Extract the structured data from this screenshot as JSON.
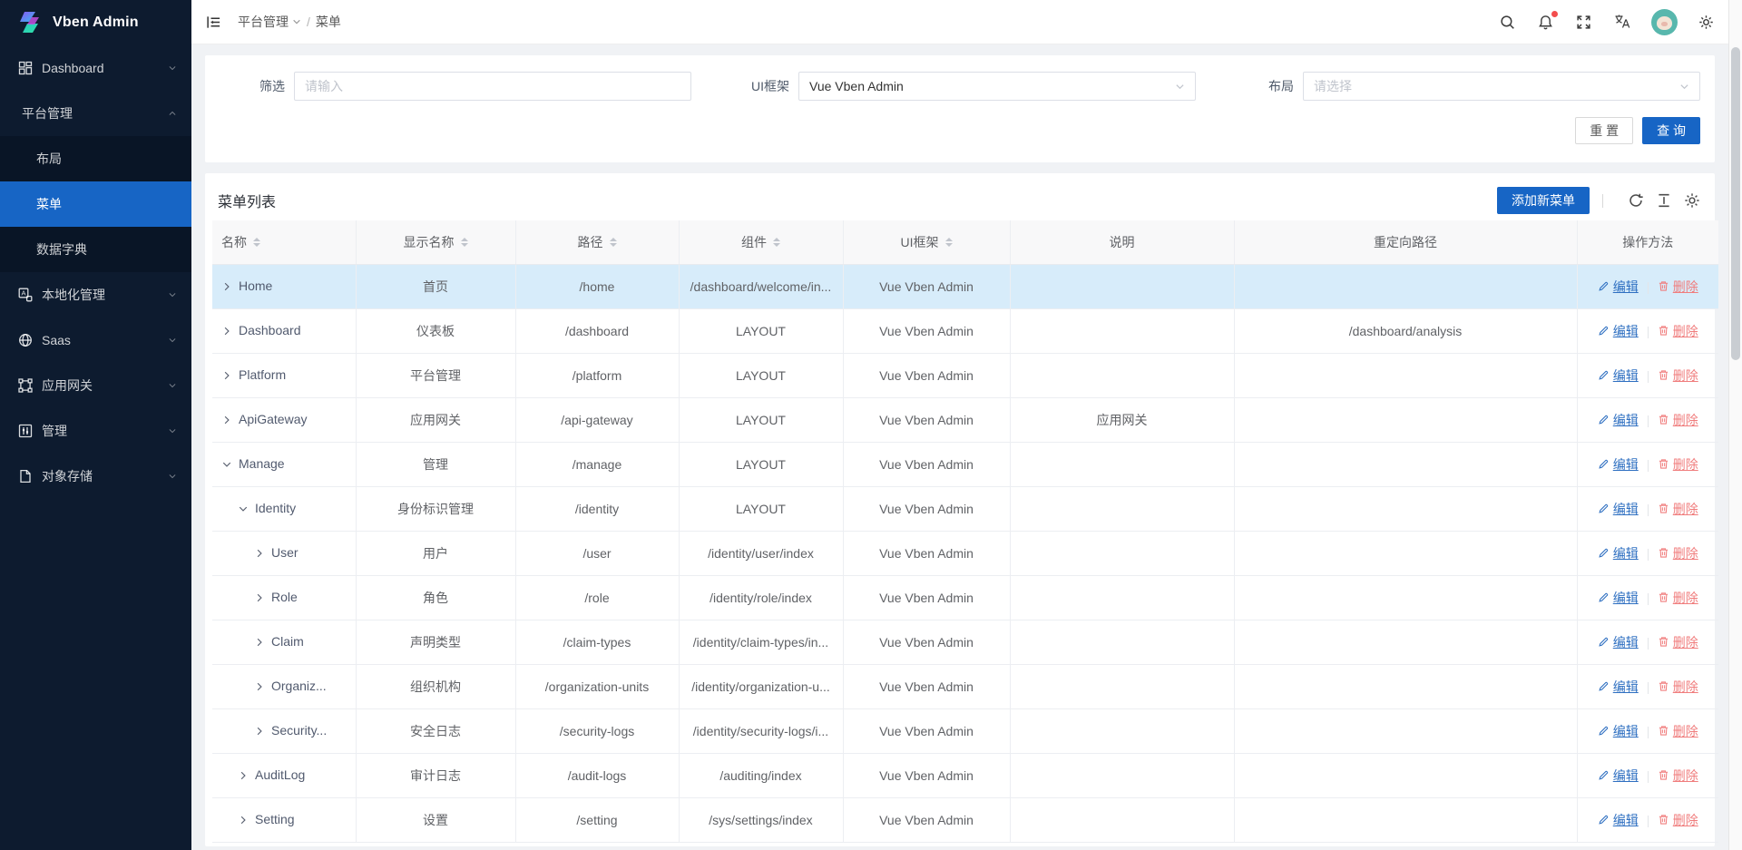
{
  "app": {
    "title": "Vben Admin"
  },
  "colors": {
    "accent": "#1765c5",
    "sidebar_bg": "#0d1b2f",
    "sidebar_submenu_bg": "#091526",
    "selected_row_bg": "#d7ecfa",
    "edit_link": "#2e6fc1",
    "delete_link": "#f07d7d",
    "notification_dot": "#f34d4d"
  },
  "sidebar": {
    "items": [
      {
        "id": "dashboard",
        "label": "Dashboard",
        "icon": "dashboard-icon",
        "chevron": "down",
        "type": "top"
      },
      {
        "id": "platform",
        "label": "平台管理",
        "chevron": "up",
        "type": "top"
      },
      {
        "id": "layout",
        "label": "布局",
        "type": "sub"
      },
      {
        "id": "menu",
        "label": "菜单",
        "type": "sub",
        "selected": true
      },
      {
        "id": "data-dictionary",
        "label": "数据字典",
        "type": "sub"
      },
      {
        "id": "localization",
        "label": "本地化管理",
        "icon": "translate-box-icon",
        "chevron": "down",
        "type": "top"
      },
      {
        "id": "saas",
        "label": "Saas",
        "icon": "globe-icon",
        "chevron": "down",
        "type": "top"
      },
      {
        "id": "api-gateway",
        "label": "应用网关",
        "icon": "gateway-icon",
        "chevron": "down",
        "type": "top"
      },
      {
        "id": "manage",
        "label": "管理",
        "icon": "sliders-icon",
        "chevron": "down",
        "type": "top"
      },
      {
        "id": "object-storage",
        "label": "对象存储",
        "icon": "storage-icon",
        "chevron": "down",
        "type": "top"
      }
    ]
  },
  "header": {
    "breadcrumb": {
      "parent": "平台管理",
      "separator": "/",
      "current": "菜单"
    }
  },
  "filter": {
    "fields": [
      {
        "label": "筛选",
        "type": "input",
        "placeholder": "请输入",
        "value": ""
      },
      {
        "label": "UI框架",
        "type": "select",
        "value": "Vue Vben Admin"
      },
      {
        "label": "布局",
        "type": "select",
        "placeholder": "请选择",
        "value": ""
      }
    ],
    "reset_label": "重 置",
    "query_label": "查 询"
  },
  "table": {
    "title": "菜单列表",
    "add_button_label": "添加新菜单",
    "edit_label": "编辑",
    "delete_label": "删除",
    "columns": [
      {
        "key": "name",
        "label": "名称",
        "sortable": true,
        "align": "left"
      },
      {
        "key": "display-name",
        "label": "显示名称",
        "sortable": true
      },
      {
        "key": "path",
        "label": "路径",
        "sortable": true
      },
      {
        "key": "component",
        "label": "组件",
        "sortable": true
      },
      {
        "key": "ui-framework",
        "label": "UI框架",
        "sortable": true
      },
      {
        "key": "description",
        "label": "说明",
        "sortable": false
      },
      {
        "key": "redirect-path",
        "label": "重定向路径",
        "sortable": false
      },
      {
        "key": "actions",
        "label": "操作方法",
        "sortable": false
      }
    ],
    "rows": [
      {
        "name": "Home",
        "level": 0,
        "expanded": false,
        "display_name": "首页",
        "path": "/home",
        "component": "/dashboard/welcome/in...",
        "ui_framework": "Vue Vben Admin",
        "description": "",
        "redirect": "",
        "highlighted": true
      },
      {
        "name": "Dashboard",
        "level": 0,
        "expanded": false,
        "display_name": "仪表板",
        "path": "/dashboard",
        "component": "LAYOUT",
        "ui_framework": "Vue Vben Admin",
        "description": "",
        "redirect": "/dashboard/analysis",
        "highlighted": false
      },
      {
        "name": "Platform",
        "level": 0,
        "expanded": false,
        "display_name": "平台管理",
        "path": "/platform",
        "component": "LAYOUT",
        "ui_framework": "Vue Vben Admin",
        "description": "",
        "redirect": "",
        "highlighted": false
      },
      {
        "name": "ApiGateway",
        "level": 0,
        "expanded": false,
        "display_name": "应用网关",
        "path": "/api-gateway",
        "component": "LAYOUT",
        "ui_framework": "Vue Vben Admin",
        "description": "应用网关",
        "redirect": "",
        "highlighted": false
      },
      {
        "name": "Manage",
        "level": 0,
        "expanded": true,
        "display_name": "管理",
        "path": "/manage",
        "component": "LAYOUT",
        "ui_framework": "Vue Vben Admin",
        "description": "",
        "redirect": "",
        "highlighted": false
      },
      {
        "name": "Identity",
        "level": 1,
        "expanded": true,
        "display_name": "身份标识管理",
        "path": "/identity",
        "component": "LAYOUT",
        "ui_framework": "Vue Vben Admin",
        "description": "",
        "redirect": "",
        "highlighted": false
      },
      {
        "name": "User",
        "level": 2,
        "expanded": false,
        "display_name": "用户",
        "path": "/user",
        "component": "/identity/user/index",
        "ui_framework": "Vue Vben Admin",
        "description": "",
        "redirect": "",
        "highlighted": false
      },
      {
        "name": "Role",
        "level": 2,
        "expanded": false,
        "display_name": "角色",
        "path": "/role",
        "component": "/identity/role/index",
        "ui_framework": "Vue Vben Admin",
        "description": "",
        "redirect": "",
        "highlighted": false
      },
      {
        "name": "Claim",
        "level": 2,
        "expanded": false,
        "display_name": "声明类型",
        "path": "/claim-types",
        "component": "/identity/claim-types/in...",
        "ui_framework": "Vue Vben Admin",
        "description": "",
        "redirect": "",
        "highlighted": false
      },
      {
        "name": "Organiz...",
        "level": 2,
        "expanded": false,
        "display_name": "组织机构",
        "path": "/organization-units",
        "component": "/identity/organization-u...",
        "ui_framework": "Vue Vben Admin",
        "description": "",
        "redirect": "",
        "highlighted": false
      },
      {
        "name": "Security...",
        "level": 2,
        "expanded": false,
        "display_name": "安全日志",
        "path": "/security-logs",
        "component": "/identity/security-logs/i...",
        "ui_framework": "Vue Vben Admin",
        "description": "",
        "redirect": "",
        "highlighted": false
      },
      {
        "name": "AuditLog",
        "level": 1,
        "expanded": false,
        "display_name": "审计日志",
        "path": "/audit-logs",
        "component": "/auditing/index",
        "ui_framework": "Vue Vben Admin",
        "description": "",
        "redirect": "",
        "highlighted": false
      },
      {
        "name": "Setting",
        "level": 1,
        "expanded": false,
        "display_name": "设置",
        "path": "/setting",
        "component": "/sys/settings/index",
        "ui_framework": "Vue Vben Admin",
        "description": "",
        "redirect": "",
        "highlighted": false
      }
    ]
  }
}
